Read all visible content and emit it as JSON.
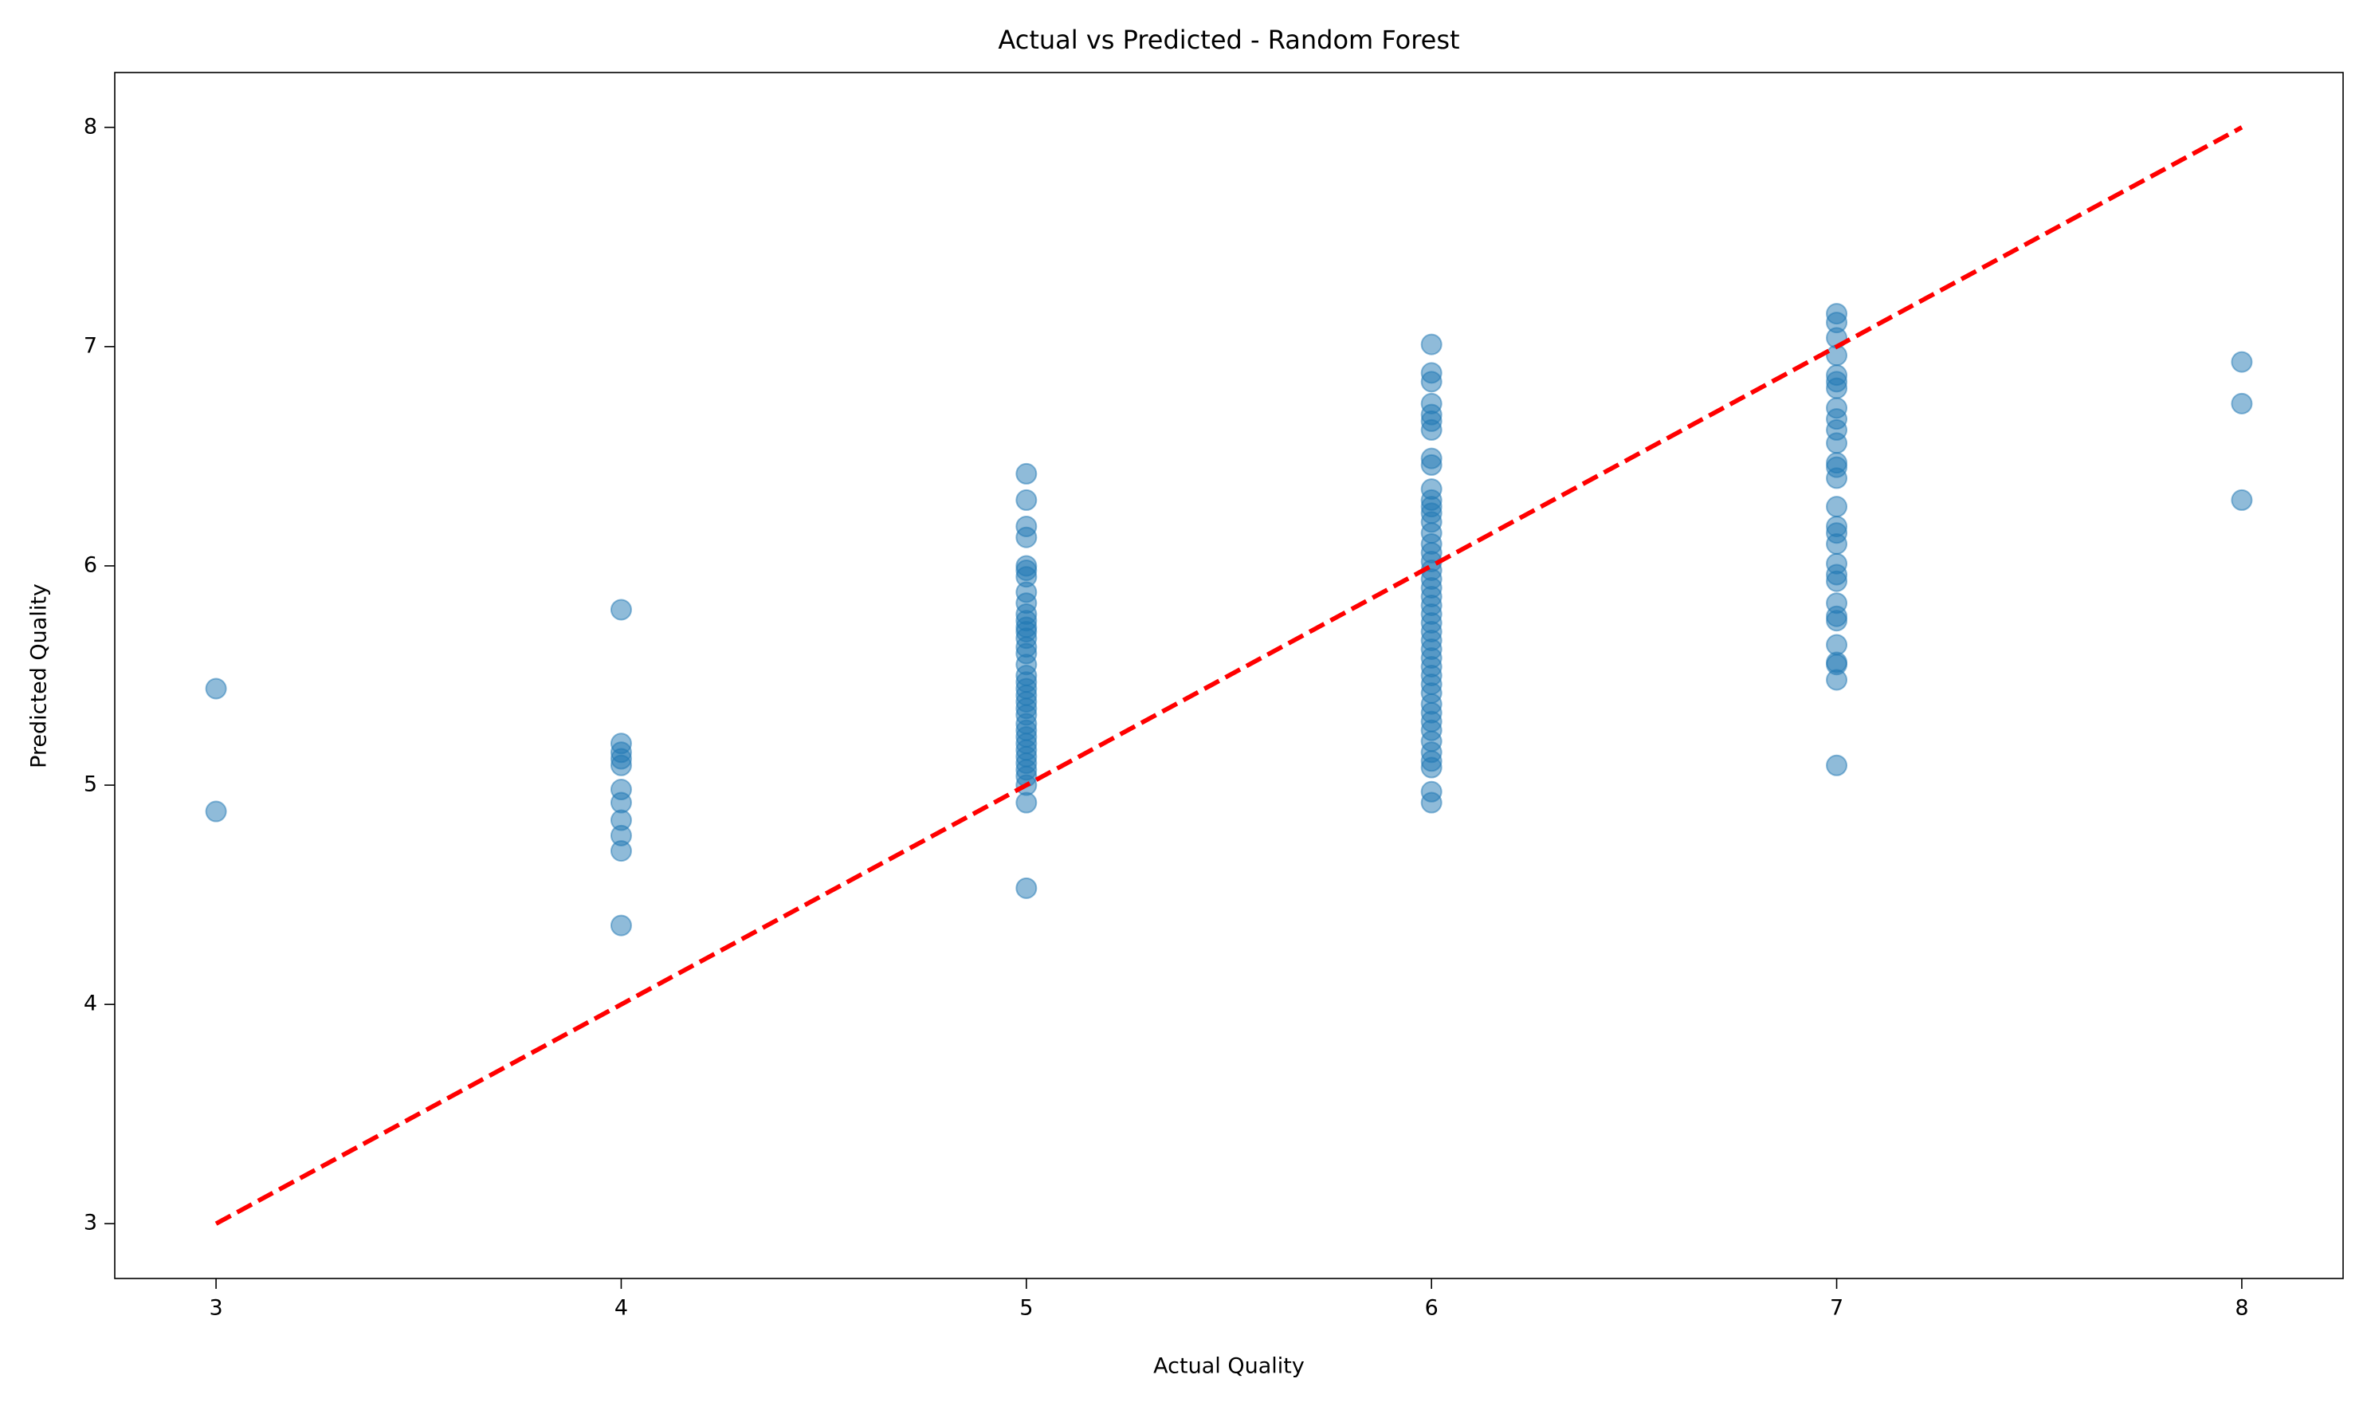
{
  "chart_data": {
    "type": "scatter",
    "title": "Actual vs Predicted - Random Forest",
    "xlabel": "Actual Quality",
    "ylabel": "Predicted Quality",
    "color": "#1f77b4",
    "alpha": 0.5,
    "x": [
      3,
      3,
      4,
      4,
      4,
      4,
      4,
      4,
      4,
      4,
      4,
      4,
      4,
      5,
      5,
      5,
      5,
      5,
      5,
      5,
      5,
      5,
      5,
      5,
      5,
      5,
      5,
      5,
      5,
      5,
      5,
      5,
      5,
      5,
      5,
      5,
      5,
      5,
      5,
      5,
      5,
      5,
      5,
      5,
      5,
      5,
      5,
      5,
      5,
      6,
      6,
      6,
      6,
      6,
      6,
      6,
      6,
      6,
      6,
      6,
      6,
      6,
      6,
      6,
      6,
      6,
      6,
      6,
      6,
      6,
      6,
      6,
      6,
      6,
      6,
      6,
      6,
      6,
      6,
      6,
      6,
      6,
      6,
      6,
      6,
      6,
      6,
      6,
      6,
      6,
      6,
      6,
      7,
      7,
      7,
      7,
      7,
      7,
      7,
      7,
      7,
      7,
      7,
      7,
      7,
      7,
      7,
      7,
      7,
      7,
      7,
      7,
      7,
      7,
      7,
      7,
      7,
      7,
      7,
      7,
      7,
      8,
      8,
      8
    ],
    "y": [
      5.44,
      4.88,
      5.8,
      5.19,
      5.15,
      5.12,
      5.09,
      4.98,
      4.92,
      4.84,
      4.77,
      4.7,
      4.36,
      6.42,
      6.3,
      6.18,
      6.13,
      6.0,
      5.98,
      5.95,
      5.88,
      5.83,
      5.78,
      5.75,
      5.72,
      5.7,
      5.67,
      5.63,
      5.6,
      5.55,
      5.5,
      5.47,
      5.44,
      5.41,
      5.38,
      5.35,
      5.32,
      5.28,
      5.25,
      5.22,
      5.19,
      5.16,
      5.13,
      5.1,
      5.07,
      5.04,
      5.0,
      4.92,
      4.53,
      7.01,
      6.88,
      6.84,
      6.74,
      6.69,
      6.66,
      6.62,
      6.49,
      6.46,
      6.35,
      6.3,
      6.27,
      6.24,
      6.2,
      6.15,
      6.1,
      6.06,
      6.02,
      5.98,
      5.94,
      5.9,
      5.86,
      5.82,
      5.78,
      5.74,
      5.7,
      5.66,
      5.62,
      5.58,
      5.54,
      5.5,
      5.46,
      5.42,
      5.37,
      5.33,
      5.29,
      5.25,
      5.2,
      5.15,
      5.11,
      5.08,
      4.97,
      4.92,
      7.15,
      7.11,
      7.04,
      6.96,
      6.87,
      6.84,
      6.81,
      6.72,
      6.67,
      6.62,
      6.56,
      6.47,
      6.45,
      6.4,
      6.27,
      6.18,
      6.15,
      6.1,
      6.01,
      5.96,
      5.93,
      5.83,
      5.77,
      5.75,
      5.64,
      5.56,
      5.55,
      5.48,
      5.09,
      6.93,
      6.74,
      6.3
    ],
    "diagonal": {
      "x": [
        3,
        8
      ],
      "y": [
        3,
        8
      ],
      "color": "#ff0000",
      "dashed": true
    },
    "xlim": [
      2.75,
      8.25
    ],
    "ylim": [
      2.75,
      8.25
    ],
    "xticks": [
      3,
      4,
      5,
      6,
      7,
      8
    ],
    "yticks": [
      3,
      4,
      5,
      6,
      7,
      8
    ],
    "grid": false
  }
}
